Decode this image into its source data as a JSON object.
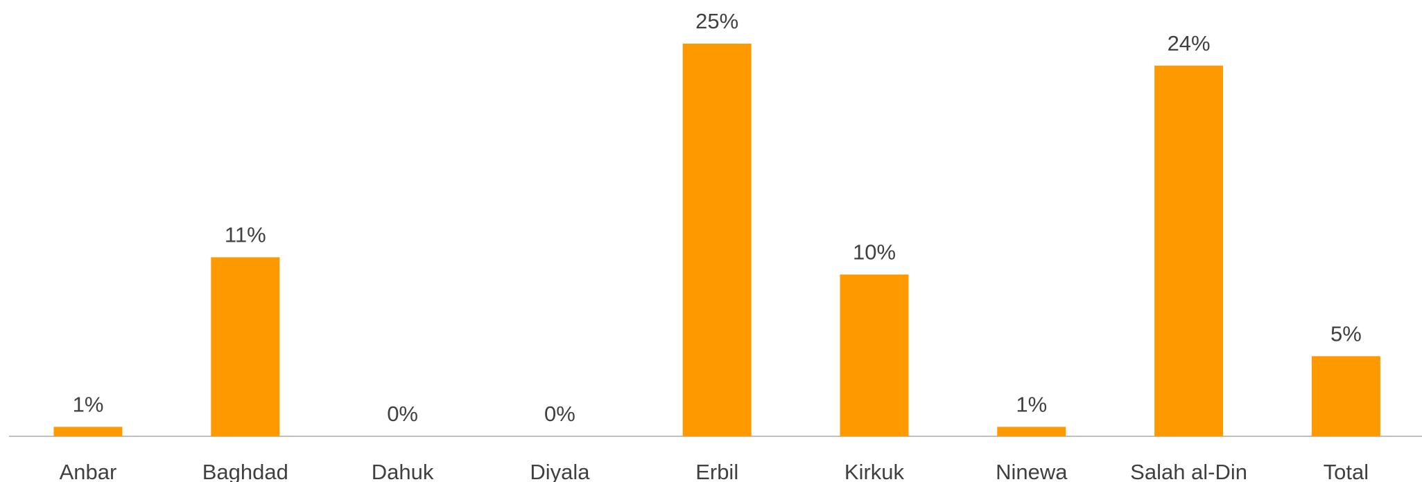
{
  "chart_data": {
    "type": "bar",
    "categories": [
      "Anbar",
      "Baghdad",
      "Dahuk",
      "Diyala",
      "Erbil",
      "Kirkuk",
      "Ninewa",
      "Salah al-Din",
      "Total"
    ],
    "values": [
      0.6,
      11.4,
      0,
      0,
      25,
      10.3,
      0.6,
      23.6,
      5.1
    ],
    "value_labels": [
      "1%",
      "11%",
      "0%",
      "0%",
      "25%",
      "10%",
      "1%",
      "24%",
      "5%"
    ],
    "color": "#ff9900",
    "ylim": [
      0,
      25
    ]
  }
}
